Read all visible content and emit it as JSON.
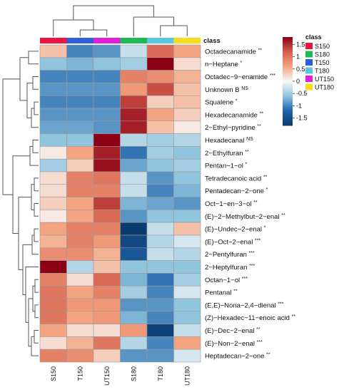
{
  "chart_data": {
    "type": "heatmap",
    "class_label": "class",
    "columns": [
      "S150",
      "T150",
      "UT150",
      "S180",
      "T180",
      "UT180"
    ],
    "column_classes": [
      "S150",
      "T150",
      "UT150",
      "S180",
      "T180",
      "UT180"
    ],
    "classes": [
      {
        "name": "S150",
        "color": "#e8173f"
      },
      {
        "name": "S180",
        "color": "#1db954"
      },
      {
        "name": "T150",
        "color": "#2e5fd9"
      },
      {
        "name": "T180",
        "color": "#58c8e0"
      },
      {
        "name": "UT150",
        "color": "#e020d8"
      },
      {
        "name": "UT180",
        "color": "#f7dc1b"
      }
    ],
    "rows": [
      {
        "label": "Octadecanamide",
        "sig": "**"
      },
      {
        "label": "n−Heptane",
        "sig": "*"
      },
      {
        "label": "Octadec−9−enamide",
        "sig": "***"
      },
      {
        "label": "Unknown B",
        "sig": "NS"
      },
      {
        "label": "Squalene",
        "sig": "*"
      },
      {
        "label": "Hexadecanamide",
        "sig": "**"
      },
      {
        "label": "2−Ethyl−pyridine",
        "sig": "**"
      },
      {
        "label": "Hexadecanal",
        "sig": "NS"
      },
      {
        "label": "2−Ethylfuran",
        "sig": "**"
      },
      {
        "label": "Pentan−1−ol",
        "sig": "*"
      },
      {
        "label": "Tetradecanoic acid",
        "sig": "**"
      },
      {
        "label": "Pentadecan−2−one",
        "sig": "*"
      },
      {
        "label": "Oct−1−en−3−ol",
        "sig": "**"
      },
      {
        "label": "(E)−2−Methylbut−2−enal",
        "sig": "**"
      },
      {
        "label": "(E)−Undec−2−enal",
        "sig": "*"
      },
      {
        "label": "(E)−Oct−2−enal",
        "sig": "***"
      },
      {
        "label": "2−Pentylfuran",
        "sig": "***"
      },
      {
        "label": "2−Heptylfuran",
        "sig": "***"
      },
      {
        "label": "Octan−1−ol",
        "sig": "***"
      },
      {
        "label": "Pentanal",
        "sig": "**"
      },
      {
        "label": "(E,E)−Nona−2,4−dienal",
        "sig": "***"
      },
      {
        "label": "(Z)−Hexadec−11−enoic acid",
        "sig": "**"
      },
      {
        "label": "(E)−Dec−2−enal",
        "sig": "**"
      },
      {
        "label": "(E)−Non−2−enal",
        "sig": "***"
      },
      {
        "label": "Heptadecan−2−one",
        "sig": "**"
      }
    ],
    "values": [
      [
        0.4,
        -1.0,
        -0.9,
        -0.3,
        1.1,
        0.6
      ],
      [
        -0.6,
        -0.7,
        -0.6,
        -0.5,
        1.8,
        0.2
      ],
      [
        -1.0,
        -1.0,
        -1.0,
        0.9,
        0.8,
        0.5
      ],
      [
        -0.9,
        -0.9,
        -0.9,
        0.7,
        1.3,
        0.4
      ],
      [
        -1.0,
        -1.0,
        -1.0,
        1.4,
        0.3,
        0.4
      ],
      [
        -0.9,
        -0.9,
        -0.9,
        1.6,
        0.6,
        0.3
      ],
      [
        -0.8,
        -0.8,
        -0.9,
        1.6,
        0.4,
        0.1
      ],
      [
        -0.6,
        -0.6,
        1.8,
        -0.4,
        -0.5,
        -0.4
      ],
      [
        0.1,
        0.6,
        1.6,
        -1.1,
        -0.5,
        -0.6
      ],
      [
        -0.5,
        0.3,
        1.7,
        -0.8,
        -0.6,
        -0.5
      ],
      [
        0.2,
        0.9,
        1.0,
        -0.3,
        -0.9,
        -0.6
      ],
      [
        0.2,
        0.9,
        0.9,
        -0.3,
        -1.0,
        -0.7
      ],
      [
        0.3,
        0.6,
        1.4,
        -0.7,
        -0.8,
        -0.9
      ],
      [
        0.1,
        0.6,
        1.1,
        -0.9,
        -0.6,
        -0.6
      ],
      [
        0.6,
        0.9,
        0.9,
        -1.8,
        -0.3,
        0.4
      ],
      [
        0.5,
        0.9,
        0.7,
        -1.6,
        -0.4,
        -0.2
      ],
      [
        0.8,
        0.8,
        0.5,
        -1.4,
        -0.3,
        -0.4
      ],
      [
        1.8,
        -0.4,
        0.4,
        -0.6,
        -0.6,
        -0.6
      ],
      [
        0.9,
        0.2,
        1.1,
        -0.7,
        -1.1,
        -0.5
      ],
      [
        1.0,
        0.6,
        0.9,
        -0.5,
        -1.0,
        -0.2
      ],
      [
        1.0,
        0.7,
        0.7,
        -0.9,
        -0.9,
        -0.6
      ],
      [
        1.0,
        0.6,
        0.7,
        -0.7,
        -1.0,
        -0.6
      ],
      [
        0.6,
        0.2,
        0.2,
        0.7,
        -1.7,
        -0.3
      ],
      [
        0.2,
        0.5,
        1.0,
        -0.4,
        -1.0,
        0.6
      ],
      [
        0.9,
        0.8,
        0.3,
        -0.9,
        -0.9,
        -0.2
      ]
    ],
    "color_scale": {
      "ticks": [
        1.5,
        1,
        0.5,
        0,
        -0.5,
        -1,
        -1.5
      ],
      "range": [
        -1.8,
        1.8
      ],
      "low_color": "#0b3a6e",
      "mid_color": "#f7f7f7",
      "high_color": "#8b0015"
    },
    "row_dendrogram": "left",
    "column_dendrogram": "top",
    "legend_placement": "top-right"
  }
}
